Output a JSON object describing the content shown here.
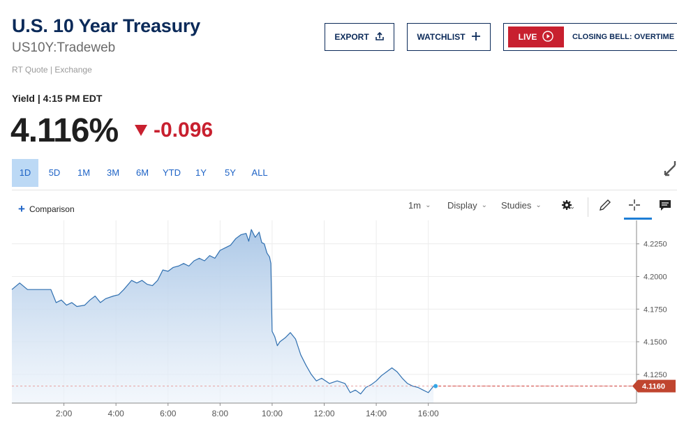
{
  "header": {
    "title": "U.S. 10 Year Treasury",
    "symbol": "US10Y:Tradeweb",
    "quote_source": "RT Quote | Exchange",
    "export_label": "EXPORT",
    "watchlist_label": "WATCHLIST",
    "live_label": "LIVE",
    "live_program": "CLOSING BELL: OVERTIME"
  },
  "quote": {
    "yield_label": "Yield | 4:15 PM EDT",
    "last": "4.116%",
    "change": "-0.096",
    "direction": "down"
  },
  "ranges": [
    "1D",
    "5D",
    "1M",
    "3M",
    "6M",
    "YTD",
    "1Y",
    "5Y",
    "ALL"
  ],
  "active_range": "1D",
  "toolbar": {
    "comparison": "Comparison",
    "interval": "1m",
    "display": "Display",
    "studies": "Studies"
  },
  "colors": {
    "brand_navy": "#0b2a59",
    "live_red": "#c8202f",
    "down_red": "#c8202f",
    "link_blue": "#1e63c6",
    "line_blue": "#2f6fb0",
    "active_range_bg": "#bcd9f5"
  },
  "icons": {
    "export": "share-upload-icon",
    "watchlist": "plus-icon",
    "live": "play-circle-icon",
    "expand": "expand-arrows-icon",
    "settings": "gear-icon",
    "draw": "pencil-icon",
    "crosshair": "crosshair-icon",
    "comment": "comment-icon"
  },
  "chart_data": {
    "type": "area",
    "x_label_unit": "time of day",
    "xlim": [
      0.0,
      24.0
    ],
    "ylim": [
      4.103,
      4.243
    ],
    "x_ticks": [
      "2:00",
      "4:00",
      "6:00",
      "8:00",
      "10:00",
      "12:00",
      "14:00",
      "16:00"
    ],
    "x_tick_values": [
      2,
      4,
      6,
      8,
      10,
      12,
      14,
      16
    ],
    "y_ticks": [
      "4.2250",
      "4.2000",
      "4.1750",
      "4.1500",
      "4.1250"
    ],
    "y_tick_values": [
      4.225,
      4.2,
      4.175,
      4.15,
      4.125
    ],
    "last_value": 4.116,
    "last_value_label": "4.1160",
    "series": [
      {
        "x": [
          0.0,
          0.3,
          0.6,
          0.9,
          1.2,
          1.5,
          1.7,
          1.9,
          2.1,
          2.3,
          2.5,
          2.8,
          3.0,
          3.2,
          3.4,
          3.6,
          3.9,
          4.1,
          4.3,
          4.6,
          4.8,
          5.0,
          5.2,
          5.4,
          5.6,
          5.8,
          6.0,
          6.2,
          6.4,
          6.6,
          6.8,
          7.0,
          7.2,
          7.4,
          7.6,
          7.8,
          8.0,
          8.2,
          8.4,
          8.6,
          8.8,
          9.0,
          9.1,
          9.2,
          9.35,
          9.5,
          9.6,
          9.7,
          9.8,
          9.9,
          9.95,
          10.0,
          10.1,
          10.2,
          10.3,
          10.5,
          10.7,
          10.9,
          11.1,
          11.3,
          11.5,
          11.7,
          11.9,
          12.2,
          12.5,
          12.8,
          13.0,
          13.2,
          13.4,
          13.6,
          13.8,
          14.0,
          14.2,
          14.4,
          14.6,
          14.8,
          15.0,
          15.2,
          15.4,
          15.6,
          15.8,
          16.0,
          16.2
        ],
        "y": [
          4.19,
          4.195,
          4.19,
          4.19,
          4.19,
          4.19,
          4.18,
          4.182,
          4.178,
          4.18,
          4.177,
          4.178,
          4.182,
          4.185,
          4.18,
          4.183,
          4.185,
          4.186,
          4.19,
          4.197,
          4.195,
          4.197,
          4.194,
          4.193,
          4.197,
          4.205,
          4.204,
          4.207,
          4.208,
          4.21,
          4.208,
          4.212,
          4.214,
          4.212,
          4.216,
          4.214,
          4.22,
          4.222,
          4.224,
          4.229,
          4.232,
          4.233,
          4.227,
          4.236,
          4.23,
          4.234,
          4.226,
          4.225,
          4.218,
          4.215,
          4.21,
          4.158,
          4.154,
          4.147,
          4.15,
          4.153,
          4.157,
          4.152,
          4.14,
          4.132,
          4.125,
          4.12,
          4.122,
          4.118,
          4.12,
          4.118,
          4.111,
          4.113,
          4.11,
          4.115,
          4.117,
          4.12,
          4.124,
          4.127,
          4.13,
          4.127,
          4.122,
          4.118,
          4.116,
          4.115,
          4.113,
          4.111,
          4.116
        ]
      }
    ]
  }
}
